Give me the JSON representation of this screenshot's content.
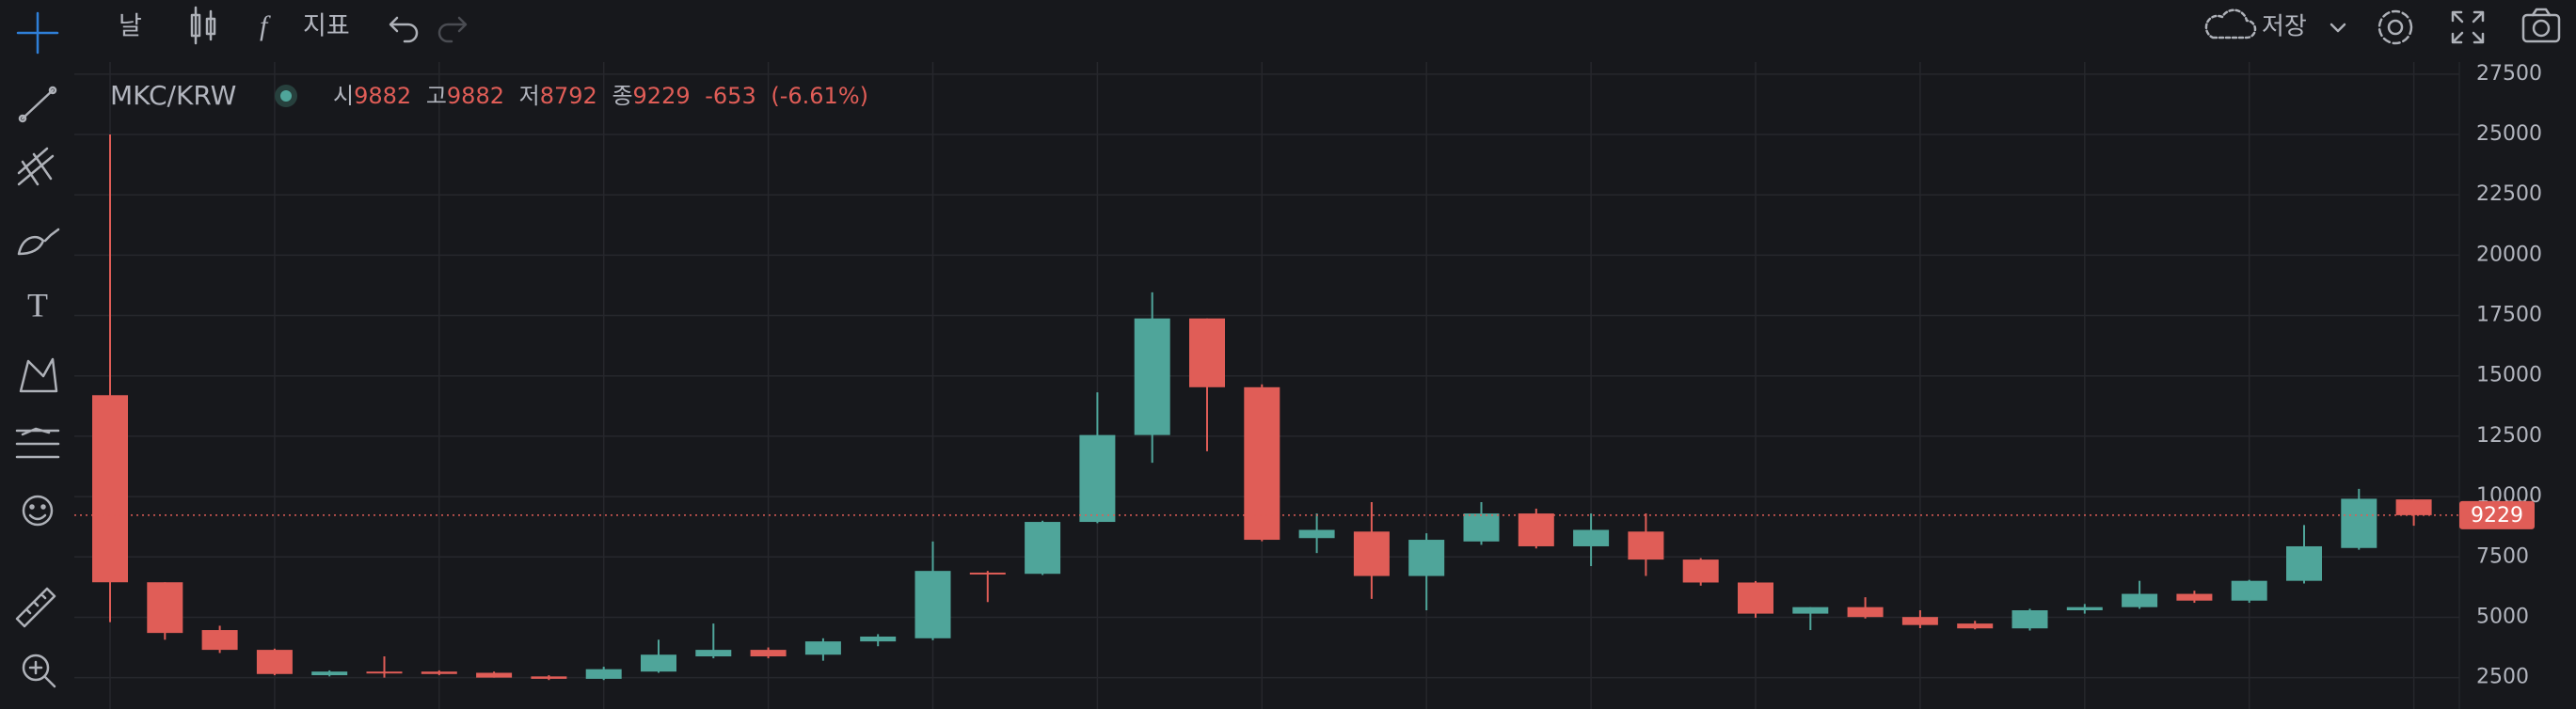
{
  "toolbar": {
    "interval": "날",
    "indicators": "지표",
    "save": "저장"
  },
  "chart_data": {
    "type": "candlestick",
    "title": "MKC/KRW",
    "legend": {
      "open_label": "시",
      "open": 9882,
      "high_label": "고",
      "high": 9882,
      "low_label": "저",
      "low": 8792,
      "close_label": "종",
      "close": 9229,
      "change": "-653",
      "change_pct": "(-6.61%)"
    },
    "open": [
      14200,
      6450,
      4470,
      3650,
      2600,
      2750,
      2750,
      2700,
      2550,
      2450,
      2750,
      3380,
      3650,
      3450,
      4000,
      4130,
      6850,
      6800,
      8950,
      12550,
      17380,
      14530,
      8280,
      8550,
      6710,
      8140,
      9300,
      7940,
      8550,
      7390,
      6440,
      5150,
      5420,
      5010,
      4740,
      4540,
      5290,
      5420,
      5970,
      5690,
      6510,
      7870,
      9882
    ],
    "high": [
      25000,
      6450,
      4650,
      3700,
      2800,
      3380,
      2800,
      2750,
      2600,
      2950,
      4070,
      4740,
      3750,
      4130,
      4300,
      8140,
      6920,
      9000,
      14320,
      18460,
      17380,
      14650,
      9300,
      9770,
      8480,
      9770,
      9500,
      9300,
      9300,
      7450,
      6500,
      5420,
      5830,
      5290,
      4850,
      5350,
      5550,
      6510,
      6100,
      6550,
      8820,
      10320,
      9882
    ],
    "low": [
      4800,
      4070,
      3520,
      2600,
      2550,
      2500,
      2600,
      2500,
      2400,
      2400,
      2700,
      3300,
      3300,
      3200,
      3800,
      4050,
      5630,
      6750,
      8900,
      11400,
      11880,
      8150,
      7660,
      5760,
      5290,
      8000,
      7850,
      7120,
      6710,
      6310,
      4980,
      4470,
      4950,
      4550,
      4500,
      4450,
      5150,
      5350,
      5600,
      5600,
      6400,
      7800,
      8792
    ],
    "close": [
      6450,
      4350,
      3650,
      2650,
      2750,
      2700,
      2650,
      2500,
      2450,
      2850,
      3450,
      3650,
      3380,
      4000,
      4200,
      6920,
      6800,
      8950,
      12550,
      17380,
      14530,
      8210,
      8620,
      6710,
      8210,
      9300,
      7940,
      8620,
      7390,
      6440,
      5150,
      5420,
      5010,
      4680,
      4540,
      5290,
      5420,
      5970,
      5690,
      6510,
      7940,
      9910,
      9229
    ],
    "up_color": "#4fa59a",
    "down_color": "#e05d57",
    "ylim": [
      1200,
      28000
    ],
    "yticks": [
      2500,
      5000,
      7500,
      10000,
      12500,
      15000,
      17500,
      20000,
      22500,
      25000,
      27500
    ],
    "last_price": 9229,
    "grid": true
  }
}
